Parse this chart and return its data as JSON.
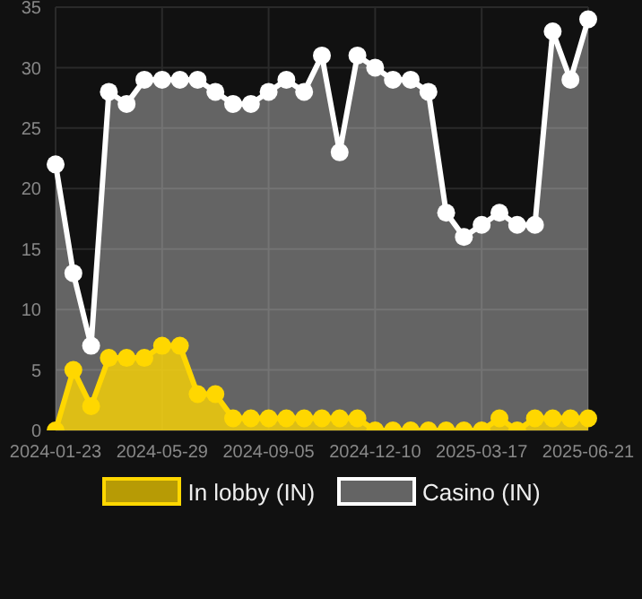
{
  "chart_data": {
    "type": "area",
    "categories": [
      "2024-01-23",
      null,
      null,
      null,
      null,
      null,
      "2024-05-29",
      null,
      null,
      null,
      null,
      null,
      "2024-09-05",
      null,
      null,
      null,
      null,
      null,
      "2024-12-10",
      null,
      null,
      null,
      null,
      null,
      "2025-03-17",
      null,
      null,
      null,
      null,
      null,
      "2025-06-21"
    ],
    "series": [
      {
        "name": "In lobby (IN)",
        "color": "#ffd700",
        "values": [
          0,
          5,
          2,
          6,
          6,
          6,
          7,
          7,
          3,
          3,
          1,
          1,
          1,
          1,
          1,
          1,
          1,
          1,
          0,
          0,
          0,
          0,
          0,
          0,
          0,
          1,
          0,
          1,
          1,
          1,
          1
        ]
      },
      {
        "name": "Casino (IN)",
        "color": "#ffffff",
        "values": [
          22,
          13,
          7,
          28,
          27,
          29,
          29,
          29,
          29,
          28,
          27,
          27,
          28,
          29,
          28,
          31,
          23,
          31,
          30,
          29,
          29,
          28,
          18,
          16,
          17,
          18,
          17,
          17,
          33,
          29,
          34
        ]
      }
    ],
    "ylim": [
      0,
      35
    ],
    "yticks": [
      0,
      5,
      10,
      15,
      20,
      25,
      30,
      35
    ],
    "grid": true,
    "legend": "bottom",
    "marker": "circle"
  }
}
